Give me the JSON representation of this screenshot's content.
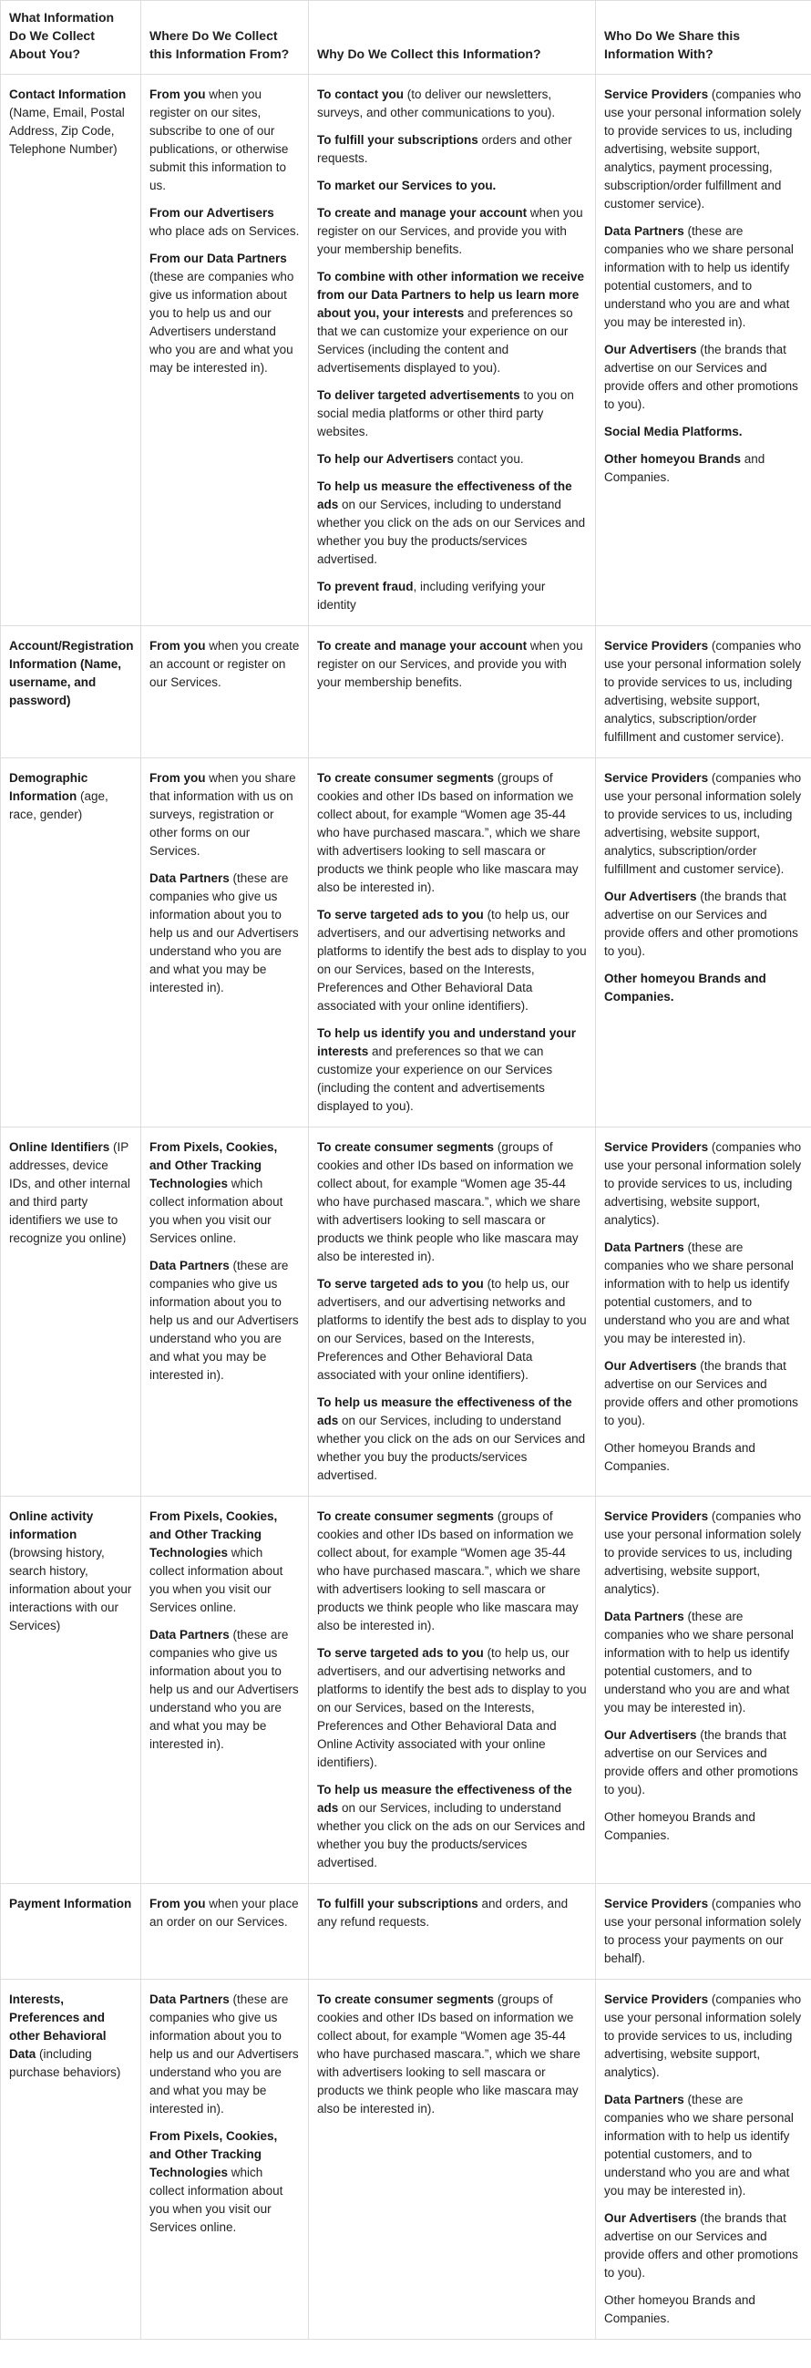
{
  "headers": [
    "What Information Do We Collect About You?",
    "Where Do We Collect this Information From?",
    "Why Do We Collect this Information?",
    "Who Do We Share this Information With?"
  ],
  "rows": [
    {
      "cells": [
        [
          [
            {
              "b": true,
              "t": "Contact Information"
            },
            {
              "t": " (Name, Email, Postal Address, Zip Code, Telephone Number)"
            }
          ]
        ],
        [
          [
            {
              "b": true,
              "t": "From you"
            },
            {
              "t": " when you register on our sites, subscribe to one of our publications, or otherwise submit this information to us."
            }
          ],
          [
            {
              "b": true,
              "t": "From our Advertisers"
            },
            {
              "t": " who place ads on Services."
            }
          ],
          [
            {
              "b": true,
              "t": "From our Data Partners"
            },
            {
              "t": " (these are companies who give us information about you to help us and our Advertisers understand who you are and what you may be interested in)."
            }
          ]
        ],
        [
          [
            {
              "b": true,
              "t": "To contact you"
            },
            {
              "t": " (to deliver our newsletters, surveys, and other communications to you)."
            }
          ],
          [
            {
              "b": true,
              "t": "To fulfill your subscriptions"
            },
            {
              "t": " orders and other requests."
            }
          ],
          [
            {
              "b": true,
              "t": "To market our Services to you."
            }
          ],
          [
            {
              "b": true,
              "t": "To create and manage your account"
            },
            {
              "t": " when you register on our Services, and provide you with your membership benefits."
            }
          ],
          [
            {
              "b": true,
              "t": "To combine with other information we receive from our Data Partners to help us learn more about you, your interests"
            },
            {
              "t": " and preferences so that we can customize your experience on our Services (including the content and advertisements displayed to you)."
            }
          ],
          [
            {
              "b": true,
              "t": "To deliver targeted advertisements"
            },
            {
              "t": " to you on social media platforms or other third party websites."
            }
          ],
          [
            {
              "b": true,
              "t": "To help our Advertisers"
            },
            {
              "t": " contact you."
            }
          ],
          [
            {
              "b": true,
              "t": "To help us measure the effectiveness of the ads"
            },
            {
              "t": " on our Services, including to understand whether you click on the ads on our Services and whether you buy the products/services advertised."
            }
          ],
          [
            {
              "b": true,
              "t": "To prevent fraud"
            },
            {
              "t": ", including verifying your identity"
            }
          ]
        ],
        [
          [
            {
              "b": true,
              "t": "Service Providers"
            },
            {
              "t": " (companies who use your personal information solely to provide services to us, including advertising, website support, analytics, payment processing, subscription/order fulfillment and customer service)."
            }
          ],
          [
            {
              "b": true,
              "t": "Data Partners"
            },
            {
              "t": " (these are companies who we share personal information with to help us identify potential customers, and to understand who you are and what you may be interested in)."
            }
          ],
          [
            {
              "b": true,
              "t": "Our Advertisers"
            },
            {
              "t": " (the brands that advertise on our Services and provide offers and other promotions to you)."
            }
          ],
          [
            {
              "b": true,
              "t": "Social Media Platforms."
            }
          ],
          [
            {
              "b": true,
              "t": "Other homeyou Brands"
            },
            {
              "t": " and Companies."
            }
          ]
        ]
      ]
    },
    {
      "cells": [
        [
          [
            {
              "b": true,
              "t": "Account/Registration Information (Name, username, and password)"
            }
          ]
        ],
        [
          [
            {
              "b": true,
              "t": "From you"
            },
            {
              "t": " when you create an account or register on our Services."
            }
          ]
        ],
        [
          [
            {
              "b": true,
              "t": "To create and manage your account"
            },
            {
              "t": " when you register on our Services, and provide you with your membership benefits."
            }
          ]
        ],
        [
          [
            {
              "b": true,
              "t": "Service Providers"
            },
            {
              "t": " (companies who use your personal information solely to provide services to us, including advertising, website support, analytics, subscription/order fulfillment and customer service)."
            }
          ]
        ]
      ]
    },
    {
      "cells": [
        [
          [
            {
              "b": true,
              "t": "Demographic Information"
            },
            {
              "t": " (age, race, gender)"
            }
          ]
        ],
        [
          [
            {
              "b": true,
              "t": "From you"
            },
            {
              "t": " when you share that information with us on surveys, registration or other forms on our Services."
            }
          ],
          [
            {
              "b": true,
              "t": "Data Partners"
            },
            {
              "t": " (these are companies who give us information about you to help us and our Advertisers understand who you are and what you may be interested in)."
            }
          ]
        ],
        [
          [
            {
              "b": true,
              "t": "To create consumer segments"
            },
            {
              "t": " (groups of cookies and other IDs based on information we collect about, for example “Women age 35-44 who have purchased mascara.”, which we share with advertisers looking to sell mascara or products we think people who like mascara may also be interested in)."
            }
          ],
          [
            {
              "b": true,
              "t": "To serve targeted ads to you"
            },
            {
              "t": " (to help us, our advertisers, and our advertising networks and platforms to identify the best ads to display to you on our Services, based on the Interests, Preferences and Other Behavioral Data associated with your online identifiers)."
            }
          ],
          [
            {
              "b": true,
              "t": "To help us identify you and understand your interests"
            },
            {
              "t": " and preferences so that we can customize your experience on our Services (including the content and advertisements displayed to you)."
            }
          ]
        ],
        [
          [
            {
              "b": true,
              "t": "Service Providers"
            },
            {
              "t": " (companies who use your personal information solely to provide services to us, including advertising, website support, analytics, subscription/order fulfillment and customer service)."
            }
          ],
          [
            {
              "b": true,
              "t": "Our Advertisers"
            },
            {
              "t": " (the brands that advertise on our Services and provide offers and other promotions to you)."
            }
          ],
          [
            {
              "b": true,
              "t": "Other homeyou Brands and Companies."
            }
          ]
        ]
      ]
    },
    {
      "cells": [
        [
          [
            {
              "b": true,
              "t": "Online Identifiers"
            },
            {
              "t": " (IP addresses, device IDs, and other internal and third party identifiers we use to recognize you online)"
            }
          ]
        ],
        [
          [
            {
              "b": true,
              "t": "From Pixels, Cookies, and Other Tracking Technologies"
            },
            {
              "t": " which collect information about you when you visit our Services online."
            }
          ],
          [
            {
              "b": true,
              "t": "Data Partners"
            },
            {
              "t": " (these are companies who give us information about you to help us and our Advertisers understand who you are and what you may be interested in)."
            }
          ]
        ],
        [
          [
            {
              "b": true,
              "t": "To create consumer segments"
            },
            {
              "t": " (groups of cookies and other IDs based on information we collect about, for example “Women age 35-44 who have purchased mascara.”, which we share with advertisers looking to sell mascara or products we think people who like mascara may also be interested in)."
            }
          ],
          [
            {
              "b": true,
              "t": "To serve targeted ads to you"
            },
            {
              "t": " (to help us, our advertisers, and our advertising networks and platforms to identify the best ads to display to you on our Services, based on the Interests, Preferences and Other Behavioral Data associated with your online identifiers)."
            }
          ],
          [
            {
              "b": true,
              "t": "To help us measure the effectiveness of the ads"
            },
            {
              "t": " on our Services, including to understand whether you click on the ads on our Services and whether you buy the products/services advertised."
            }
          ]
        ],
        [
          [
            {
              "b": true,
              "t": "Service Providers"
            },
            {
              "t": " (companies who use your personal information solely to provide services to us, including advertising, website support, analytics)."
            }
          ],
          [
            {
              "b": true,
              "t": "Data Partners"
            },
            {
              "t": " (these are companies who we share personal information with to help us identify potential customers, and to understand who you are and what you may be interested in)."
            }
          ],
          [
            {
              "b": true,
              "t": "Our Advertisers"
            },
            {
              "t": " (the brands that advertise on our Services and provide offers and other promotions to you)."
            }
          ],
          [
            {
              "t": "Other homeyou Brands and Companies."
            }
          ]
        ]
      ]
    },
    {
      "cells": [
        [
          [
            {
              "b": true,
              "t": "Online activity information"
            },
            {
              "t": " (browsing history, search history, information about your interactions with our Services)"
            }
          ]
        ],
        [
          [
            {
              "b": true,
              "t": "From Pixels, Cookies, and Other Tracking Technologies"
            },
            {
              "t": " which collect information about you when you visit our Services online."
            }
          ],
          [
            {
              "b": true,
              "t": "Data Partners"
            },
            {
              "t": " (these are companies who give us information about you to help us and our Advertisers understand who you are and what you may be interested in)."
            }
          ]
        ],
        [
          [
            {
              "b": true,
              "t": "To create consumer segments"
            },
            {
              "t": " (groups of cookies and other IDs based on information we collect about, for example “Women age 35-44 who have purchased mascara.”, which we share with advertisers looking to sell mascara or products we think people who like mascara may also be interested in)."
            }
          ],
          [
            {
              "b": true,
              "t": "To serve targeted ads to you"
            },
            {
              "t": " (to help us, our advertisers, and our advertising networks and platforms to identify the best ads to display to you on our Services, based on the Interests, Preferences and Other Behavioral Data and Online Activity associated with your online identifiers)."
            }
          ],
          [
            {
              "b": true,
              "t": "To help us measure the effectiveness of the ads"
            },
            {
              "t": " on our Services, including to understand whether you click on the ads on our Services and whether you buy the products/services advertised."
            }
          ]
        ],
        [
          [
            {
              "b": true,
              "t": "Service Providers"
            },
            {
              "t": " (companies who use your personal information solely to provide services to us, including advertising, website support, analytics)."
            }
          ],
          [
            {
              "b": true,
              "t": "Data Partners"
            },
            {
              "t": " (these are companies who we share personal information with to help us identify potential customers, and to understand who you are and what you may be interested in)."
            }
          ],
          [
            {
              "b": true,
              "t": "Our Advertisers"
            },
            {
              "t": " (the brands that advertise on our Services and provide offers and other promotions to you)."
            }
          ],
          [
            {
              "t": "Other homeyou Brands and Companies."
            }
          ]
        ]
      ]
    },
    {
      "cells": [
        [
          [
            {
              "b": true,
              "t": "Payment Information"
            }
          ]
        ],
        [
          [
            {
              "b": true,
              "t": "From you"
            },
            {
              "t": " when your place an order on our Services."
            }
          ]
        ],
        [
          [
            {
              "b": true,
              "t": "To fulfill your subscriptions"
            },
            {
              "t": " and orders, and any refund requests."
            }
          ]
        ],
        [
          [
            {
              "b": true,
              "t": "Service Providers"
            },
            {
              "t": " (companies who use your personal information solely to process your payments on our behalf)."
            }
          ]
        ]
      ]
    },
    {
      "cells": [
        [
          [
            {
              "b": true,
              "t": "Interests, Preferences and other Behavioral Data"
            },
            {
              "t": " (including purchase behaviors)"
            }
          ]
        ],
        [
          [
            {
              "b": true,
              "t": "Data Partners"
            },
            {
              "t": " (these are companies who give us information about you to help us and our Advertisers understand who you are and what you may be interested in)."
            }
          ],
          [
            {
              "b": true,
              "t": "From Pixels, Cookies, and Other Tracking Technologies"
            },
            {
              "t": " which collect information about you when you visit our Services online."
            }
          ]
        ],
        [
          [
            {
              "b": true,
              "t": "To create consumer segments"
            },
            {
              "t": " (groups of cookies and other IDs based on information we collect about, for example “Women age 35-44 who have purchased mascara.”, which we share with advertisers looking to sell mascara or products we think people who like mascara may also be interested in)."
            }
          ]
        ],
        [
          [
            {
              "b": true,
              "t": "Service Providers"
            },
            {
              "t": " (companies who use your personal information solely to provide services to us, including advertising, website support, analytics)."
            }
          ],
          [
            {
              "b": true,
              "t": "Data Partners"
            },
            {
              "t": " (these are companies who we share personal information with to help us identify potential customers, and to understand who you are and what you may be interested in)."
            }
          ],
          [
            {
              "b": true,
              "t": "Our Advertisers"
            },
            {
              "t": " (the brands that advertise on our Services and provide offers and other promotions to you)."
            }
          ],
          [
            {
              "t": "Other homeyou Brands and Companies."
            }
          ]
        ]
      ]
    }
  ]
}
